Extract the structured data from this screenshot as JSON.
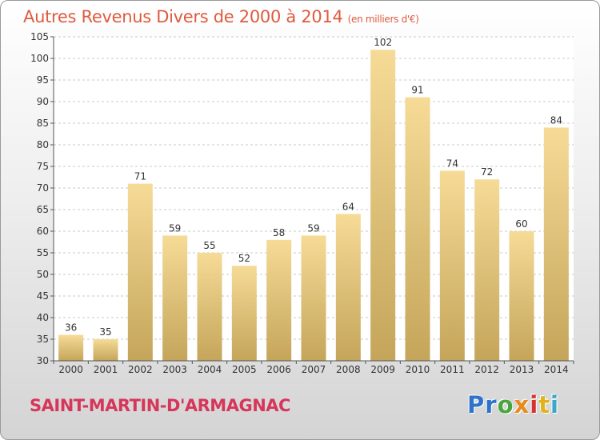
{
  "title": "Autres Revenus Divers de 2000 à 2014",
  "subtitle": "(en milliers d'€)",
  "commune": "SAINT-MARTIN-D'ARMAGNAC",
  "logo": {
    "letters": [
      "Pr",
      "o",
      "x",
      "i",
      "t",
      "i"
    ]
  },
  "colors": {
    "title": "#de5b3f",
    "commune": "#d6365a",
    "bar_top": "#f6db97",
    "bar_bottom": "#c4a55a",
    "grid": "#c8c8c8",
    "axis": "#555555"
  },
  "chart_data": {
    "type": "bar",
    "title": "Autres Revenus Divers de 2000 à 2014",
    "subtitle": "(en milliers d'€)",
    "categories": [
      "2000",
      "2001",
      "2002",
      "2003",
      "2004",
      "2005",
      "2006",
      "2007",
      "2008",
      "2009",
      "2010",
      "2011",
      "2012",
      "2013",
      "2014"
    ],
    "values": [
      36,
      35,
      71,
      59,
      55,
      52,
      58,
      59,
      64,
      102,
      91,
      74,
      72,
      60,
      84
    ],
    "ylim": [
      30,
      105
    ],
    "yticks": [
      30,
      35,
      40,
      45,
      50,
      55,
      60,
      65,
      70,
      75,
      80,
      85,
      90,
      95,
      100,
      105
    ],
    "grid": true,
    "data_labels": true,
    "xlabel": "",
    "ylabel": ""
  }
}
